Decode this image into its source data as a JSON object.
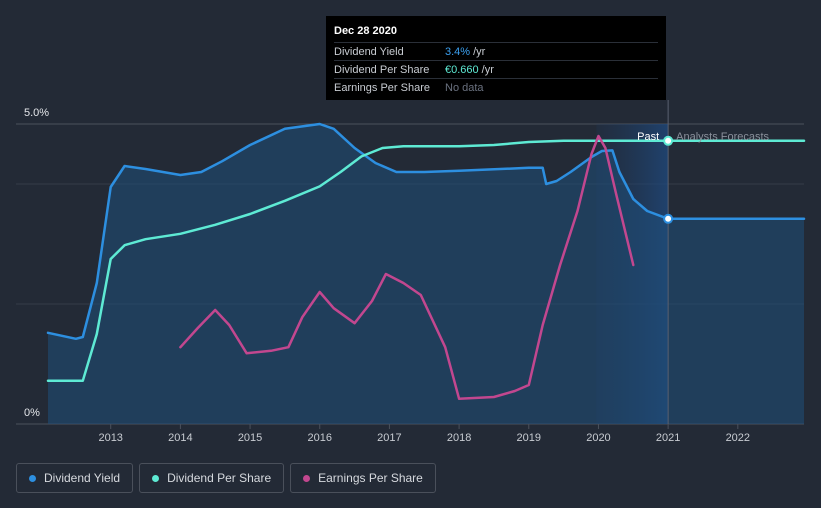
{
  "tooltip": {
    "date": "Dec 28 2020",
    "rows": [
      {
        "label": "Dividend Yield",
        "value": "3.4%",
        "unit": "/yr",
        "color": "#3ba0f0"
      },
      {
        "label": "Dividend Per Share",
        "value": "€0.660",
        "unit": "/yr",
        "color": "#5eead4"
      },
      {
        "label": "Earnings Per Share",
        "value": "No data",
        "unit": "",
        "color": "#6b7280"
      }
    ]
  },
  "legend": [
    {
      "label": "Dividend Yield",
      "color": "#2d8fe0"
    },
    {
      "label": "Dividend Per Share",
      "color": "#5eead4"
    },
    {
      "label": "Earnings Per Share",
      "color": "#c2478f"
    }
  ],
  "chart_data": {
    "type": "line",
    "y_top_label": "5.0%",
    "y_bottom_label": "0%",
    "ylim": [
      0,
      5
    ],
    "xlim": [
      2012.1,
      2022.95
    ],
    "x_ticks": [
      "2013",
      "2014",
      "2015",
      "2016",
      "2017",
      "2018",
      "2019",
      "2020",
      "2021",
      "2022"
    ],
    "past_label": "Past",
    "forecast_label": "Analysts Forecasts",
    "divider_x": 2021.0,
    "forecast_shade_start": 2019.97,
    "series": [
      {
        "name": "Dividend Yield",
        "color": "#2d8fe0",
        "filled": true,
        "x": [
          2012.1,
          2012.5,
          2012.6,
          2012.8,
          2013.0,
          2013.2,
          2013.5,
          2014.0,
          2014.3,
          2014.6,
          2015.0,
          2015.5,
          2016.0,
          2016.2,
          2016.5,
          2016.8,
          2017.1,
          2017.5,
          2018.0,
          2019.0,
          2019.2,
          2019.25,
          2019.4,
          2019.6,
          2019.9,
          2020.05,
          2020.2,
          2020.3,
          2020.5,
          2020.7,
          2021.0,
          2022.95
        ],
        "values": [
          1.52,
          1.42,
          1.45,
          2.35,
          3.95,
          4.3,
          4.25,
          4.15,
          4.2,
          4.38,
          4.65,
          4.92,
          5.0,
          4.92,
          4.6,
          4.35,
          4.2,
          4.2,
          4.22,
          4.27,
          4.27,
          4.0,
          4.05,
          4.2,
          4.45,
          4.55,
          4.56,
          4.2,
          3.75,
          3.55,
          3.42,
          3.42
        ]
      },
      {
        "name": "Dividend Per Share",
        "color": "#5eead4",
        "filled": false,
        "x": [
          2012.1,
          2012.6,
          2012.8,
          2013.0,
          2013.2,
          2013.5,
          2014.0,
          2014.5,
          2015.0,
          2015.5,
          2016.0,
          2016.3,
          2016.6,
          2016.9,
          2017.2,
          2018.0,
          2018.5,
          2019.0,
          2019.5,
          2020.0,
          2021.0,
          2022.95
        ],
        "values": [
          0.72,
          0.72,
          1.5,
          2.75,
          2.98,
          3.08,
          3.17,
          3.32,
          3.5,
          3.72,
          3.96,
          4.2,
          4.46,
          4.6,
          4.63,
          4.63,
          4.65,
          4.7,
          4.72,
          4.72,
          4.72,
          4.72
        ]
      },
      {
        "name": "Earnings Per Share",
        "color": "#c2478f",
        "filled": false,
        "x": [
          2014.0,
          2014.25,
          2014.5,
          2014.7,
          2014.95,
          2015.3,
          2015.55,
          2015.75,
          2016.0,
          2016.2,
          2016.5,
          2016.75,
          2016.95,
          2017.2,
          2017.45,
          2017.8,
          2018.0,
          2018.5,
          2018.8,
          2019.0,
          2019.2,
          2019.45,
          2019.7,
          2019.9,
          2020.0,
          2020.1,
          2020.25,
          2020.5
        ],
        "values": [
          1.28,
          1.6,
          1.9,
          1.65,
          1.18,
          1.22,
          1.28,
          1.78,
          2.2,
          1.93,
          1.68,
          2.05,
          2.5,
          2.35,
          2.15,
          1.28,
          0.42,
          0.45,
          0.55,
          0.65,
          1.65,
          2.65,
          3.55,
          4.5,
          4.8,
          4.6,
          3.85,
          2.65
        ]
      }
    ]
  }
}
